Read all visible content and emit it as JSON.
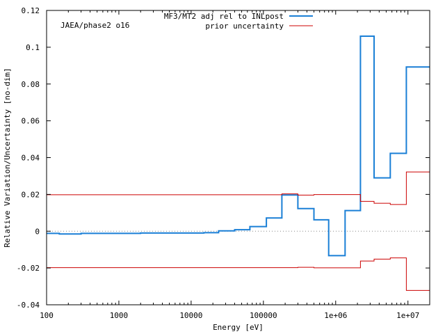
{
  "chart_data": {
    "type": "line",
    "xlabel": "Energy [eV]",
    "ylabel": "Relative Variation/Uncertainty [no-dim]",
    "annotation": "JAEA/phase2 o16",
    "xscale": "log",
    "xlim": [
      100,
      20000000
    ],
    "ylim": [
      -0.04,
      0.12
    ],
    "grid": false,
    "legend_position": "top-right",
    "x_ticks": [
      {
        "value": 100,
        "label": "100"
      },
      {
        "value": 1000,
        "label": "1000"
      },
      {
        "value": 10000,
        "label": "10000"
      },
      {
        "value": 100000,
        "label": "100000"
      },
      {
        "value": 1000000,
        "label": "1e+06"
      },
      {
        "value": 10000000,
        "label": "1e+07"
      }
    ],
    "y_ticks": [
      {
        "value": 0.12,
        "label": "0.12"
      },
      {
        "value": 0.1,
        "label": "0.1"
      },
      {
        "value": 0.08,
        "label": "0.08"
      },
      {
        "value": 0.06,
        "label": "0.06"
      },
      {
        "value": 0.04,
        "label": "0.04"
      },
      {
        "value": 0.02,
        "label": "0.02"
      },
      {
        "value": 0,
        "label": "0"
      },
      {
        "value": -0.02,
        "label": "-0.02"
      },
      {
        "value": -0.04,
        "label": "-0.04"
      }
    ],
    "series": [
      {
        "name": "MF3/MT2 adj rel to INLpost",
        "color": "#1a7fd6",
        "style": "step",
        "edges": [
          100,
          150,
          300,
          2000,
          15000,
          24000,
          40000,
          65000,
          110000,
          180000,
          300000,
          500000,
          800000,
          1350000,
          2200000,
          3400000,
          5700000,
          9500000,
          20000000
        ],
        "values": [
          -0.0012,
          -0.0015,
          -0.0012,
          -0.001,
          -0.0008,
          0.0002,
          0.0008,
          0.0025,
          0.0072,
          0.0197,
          0.0123,
          0.0062,
          -0.0133,
          0.0112,
          0.106,
          0.029,
          0.0423,
          0.0893
        ]
      },
      {
        "name": "prior uncertainty",
        "color": "#cc0000",
        "style": "step",
        "edges": [
          100,
          180000,
          300000,
          500000,
          2200000,
          3400000,
          5700000,
          9500000,
          20000000
        ],
        "values": [
          0.0198,
          0.0203,
          0.0196,
          0.0199,
          0.0162,
          0.0152,
          0.0145,
          0.0322
        ]
      },
      {
        "name": "",
        "color": "#cc0000",
        "style": "step",
        "edges": [
          100,
          180000,
          300000,
          500000,
          2200000,
          3400000,
          5700000,
          9500000,
          20000000
        ],
        "values": [
          -0.0198,
          -0.0198,
          -0.0196,
          -0.0199,
          -0.0162,
          -0.0152,
          -0.0145,
          -0.0322
        ]
      }
    ]
  }
}
